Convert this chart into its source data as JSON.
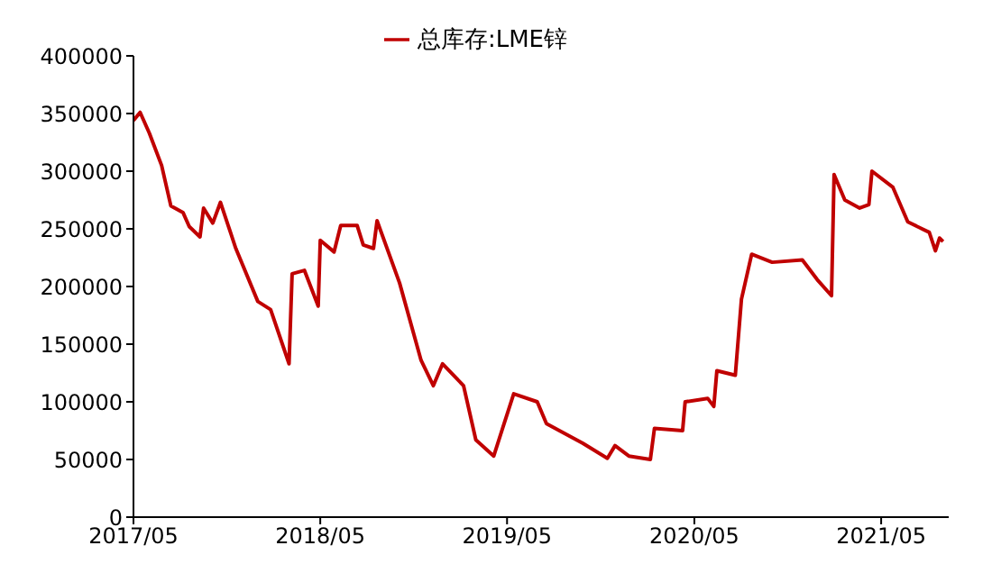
{
  "chart_data": {
    "type": "line",
    "legend": "top",
    "grid": false,
    "marker": "none",
    "line_style": "solid",
    "x": [
      "2017-05-01",
      "2017-05-14",
      "2017-06-01",
      "2017-06-25",
      "2017-07-13",
      "2017-08-06",
      "2017-08-18",
      "2017-09-08",
      "2017-09-15",
      "2017-10-03",
      "2017-10-18",
      "2017-11-17",
      "2017-12-30",
      "2018-01-24",
      "2018-03-01",
      "2018-03-07",
      "2018-03-31",
      "2018-04-27",
      "2018-05-01",
      "2018-05-28",
      "2018-06-10",
      "2018-07-12",
      "2018-07-24",
      "2018-08-13",
      "2018-08-20",
      "2018-10-03",
      "2018-11-14",
      "2018-12-08",
      "2018-12-26",
      "2019-02-05",
      "2019-03-01",
      "2019-04-05",
      "2019-04-23",
      "2019-05-14",
      "2019-06-29",
      "2019-07-17",
      "2019-09-26",
      "2019-11-13",
      "2019-11-28",
      "2019-12-25",
      "2020-02-05",
      "2020-02-13",
      "2020-04-08",
      "2020-04-13",
      "2020-05-27",
      "2020-06-08",
      "2020-06-14",
      "2020-07-20",
      "2020-08-01",
      "2020-08-21",
      "2020-09-30",
      "2020-11-28",
      "2020-12-27",
      "2021-01-24",
      "2021-01-29",
      "2021-02-19",
      "2021-03-20",
      "2021-04-07",
      "2021-04-13",
      "2021-05-24",
      "2021-06-22",
      "2021-08-03",
      "2021-08-15",
      "2021-08-23",
      "2021-08-30"
    ],
    "series": [
      {
        "name": "总库存:LME锌",
        "color": "#c00000",
        "values": [
          344000,
          351000,
          333000,
          305000,
          270000,
          264000,
          252000,
          243000,
          268000,
          255000,
          273000,
          233000,
          187000,
          180000,
          133000,
          211000,
          214000,
          183000,
          240000,
          230000,
          253000,
          253000,
          236000,
          233000,
          257000,
          203000,
          136000,
          114000,
          133000,
          114000,
          67000,
          53000,
          78000,
          107000,
          100000,
          81000,
          64000,
          51000,
          62000,
          53000,
          50000,
          77000,
          75000,
          100000,
          103000,
          96000,
          127000,
          123000,
          189000,
          228000,
          221000,
          223000,
          206000,
          192000,
          297000,
          275000,
          268000,
          271000,
          300000,
          286000,
          256000,
          247000,
          231000,
          242000,
          239000
        ]
      }
    ],
    "xlim": [
      "2017-05-01",
      "2021-09-10"
    ],
    "xticks": [
      {
        "value": "2017-05-01",
        "label": "2017/05"
      },
      {
        "value": "2018-05-01",
        "label": "2018/05"
      },
      {
        "value": "2019-05-01",
        "label": "2019/05"
      },
      {
        "value": "2020-05-01",
        "label": "2020/05"
      },
      {
        "value": "2021-05-01",
        "label": "2021/05"
      }
    ],
    "ylim": [
      0,
      400000
    ],
    "yticks": [
      0,
      50000,
      100000,
      150000,
      200000,
      250000,
      300000,
      350000,
      400000
    ]
  }
}
